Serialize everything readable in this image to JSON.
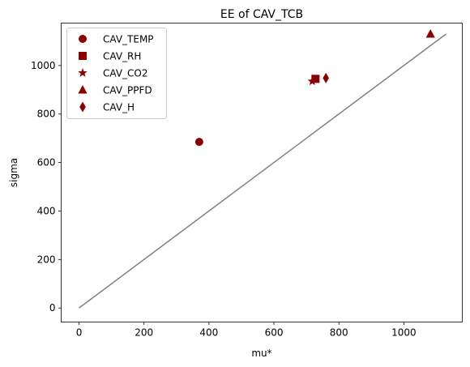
{
  "chart_data": {
    "type": "scatter",
    "title": "EE of CAV_TCB",
    "xlabel": "mu*",
    "ylabel": "sigma",
    "xlim": [
      -55,
      1180
    ],
    "ylim": [
      -58,
      1175
    ],
    "xticks": [
      0,
      200,
      400,
      600,
      800,
      1000
    ],
    "yticks": [
      0,
      200,
      400,
      600,
      800,
      1000
    ],
    "grid": false,
    "legend_position": "top-left",
    "marker_color": "#8b0000",
    "line_color": "#808080",
    "series": [
      {
        "name": "CAV_TEMP",
        "marker": "circle",
        "points": [
          {
            "x": 370,
            "y": 685
          }
        ]
      },
      {
        "name": "CAV_RH",
        "marker": "square",
        "points": [
          {
            "x": 728,
            "y": 945
          }
        ]
      },
      {
        "name": "CAV_CO2",
        "marker": "star",
        "points": [
          {
            "x": 718,
            "y": 935
          }
        ]
      },
      {
        "name": "CAV_PPFD",
        "marker": "triangle",
        "points": [
          {
            "x": 1082,
            "y": 1130
          }
        ]
      },
      {
        "name": "CAV_H",
        "marker": "thin-diamond",
        "points": [
          {
            "x": 760,
            "y": 948
          }
        ]
      }
    ],
    "reference_line": {
      "x": [
        0,
        1130
      ],
      "y": [
        0,
        1130
      ]
    }
  }
}
